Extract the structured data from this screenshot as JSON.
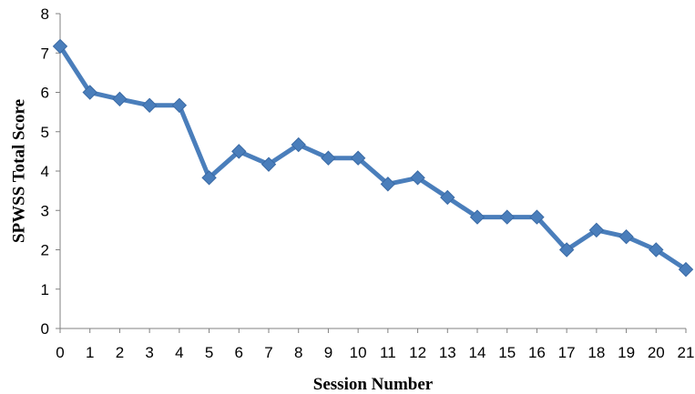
{
  "chart_data": {
    "type": "line",
    "xlabel": "Session Number",
    "ylabel": "SPWSS Total Score",
    "ylim": [
      0,
      8
    ],
    "y_ticks": [
      0,
      1,
      2,
      3,
      4,
      5,
      6,
      7,
      8
    ],
    "x": [
      0,
      1,
      2,
      3,
      4,
      5,
      6,
      7,
      8,
      9,
      10,
      11,
      12,
      13,
      14,
      15,
      16,
      17,
      18,
      19,
      20,
      21
    ],
    "series": [
      {
        "values": [
          7.17,
          6.0,
          5.83,
          5.67,
          5.67,
          3.83,
          4.5,
          4.17,
          4.67,
          4.33,
          4.33,
          3.67,
          3.83,
          3.33,
          2.83,
          2.83,
          2.83,
          2.0,
          2.5,
          2.33,
          2.0,
          1.5
        ],
        "color": "#4a7ebb",
        "marker": "diamond"
      }
    ],
    "grid": false,
    "legend": "none",
    "axis_color": "#808080"
  }
}
